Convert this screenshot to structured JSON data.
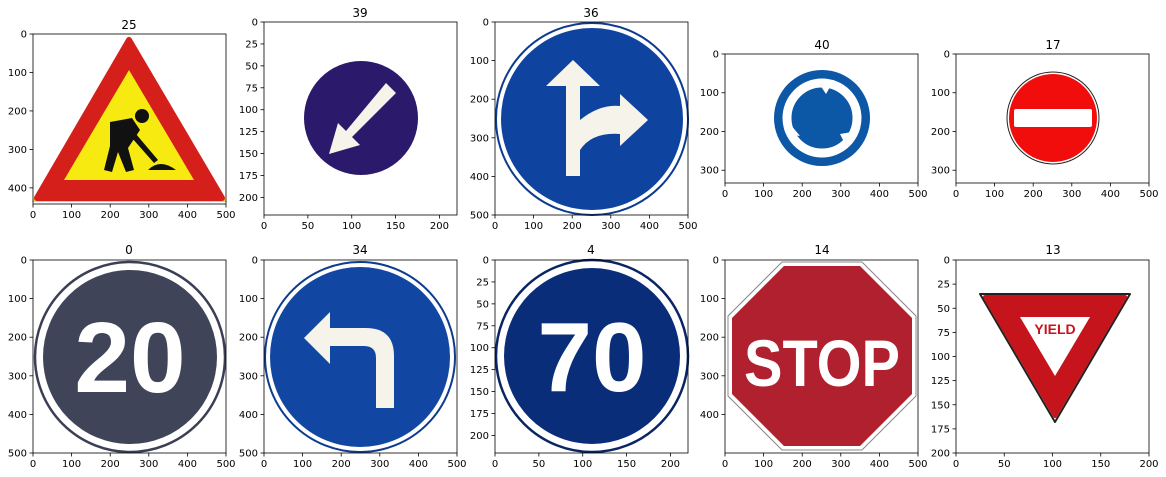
{
  "panels": [
    {
      "title": "25",
      "sign": "road-work",
      "xticks": [
        "0",
        "100",
        "200",
        "300",
        "400",
        "500"
      ],
      "yticks": [
        "0",
        "100",
        "200",
        "300",
        "400"
      ]
    },
    {
      "title": "39",
      "sign": "keep-left",
      "xticks": [
        "0",
        "50",
        "100",
        "150",
        "200"
      ],
      "yticks": [
        "0",
        "25",
        "50",
        "75",
        "100",
        "125",
        "150",
        "175",
        "200"
      ]
    },
    {
      "title": "36",
      "sign": "go-straight-or-right",
      "xticks": [
        "0",
        "100",
        "200",
        "300",
        "400",
        "500"
      ],
      "yticks": [
        "0",
        "100",
        "200",
        "300",
        "400",
        "500"
      ]
    },
    {
      "title": "40",
      "sign": "roundabout",
      "xticks": [
        "0",
        "100",
        "200",
        "300",
        "400",
        "500"
      ],
      "yticks": [
        "0",
        "100",
        "200",
        "300"
      ]
    },
    {
      "title": "17",
      "sign": "no-entry",
      "xticks": [
        "0",
        "100",
        "200",
        "300",
        "400",
        "500"
      ],
      "yticks": [
        "0",
        "100",
        "200",
        "300"
      ]
    },
    {
      "title": "0",
      "sign": "speed-limit-20",
      "text": "20",
      "xticks": [
        "0",
        "100",
        "200",
        "300",
        "400",
        "500"
      ],
      "yticks": [
        "0",
        "100",
        "200",
        "300",
        "400",
        "500"
      ]
    },
    {
      "title": "34",
      "sign": "turn-left-ahead",
      "xticks": [
        "0",
        "100",
        "200",
        "300",
        "400",
        "500"
      ],
      "yticks": [
        "0",
        "100",
        "200",
        "300",
        "400",
        "500"
      ]
    },
    {
      "title": "4",
      "sign": "speed-limit-70",
      "text": "70",
      "xticks": [
        "0",
        "50",
        "100",
        "150",
        "200"
      ],
      "yticks": [
        "0",
        "25",
        "50",
        "75",
        "100",
        "125",
        "150",
        "175",
        "200"
      ]
    },
    {
      "title": "14",
      "sign": "stop",
      "text": "STOP",
      "xticks": [
        "0",
        "100",
        "200",
        "300",
        "400",
        "500"
      ],
      "yticks": [
        "0",
        "100",
        "200",
        "300",
        "400"
      ]
    },
    {
      "title": "13",
      "sign": "yield",
      "text": "YIELD",
      "xticks": [
        "0",
        "50",
        "100",
        "150",
        "200"
      ],
      "yticks": [
        "0",
        "25",
        "50",
        "75",
        "100",
        "125",
        "150",
        "175",
        "200"
      ]
    }
  ]
}
